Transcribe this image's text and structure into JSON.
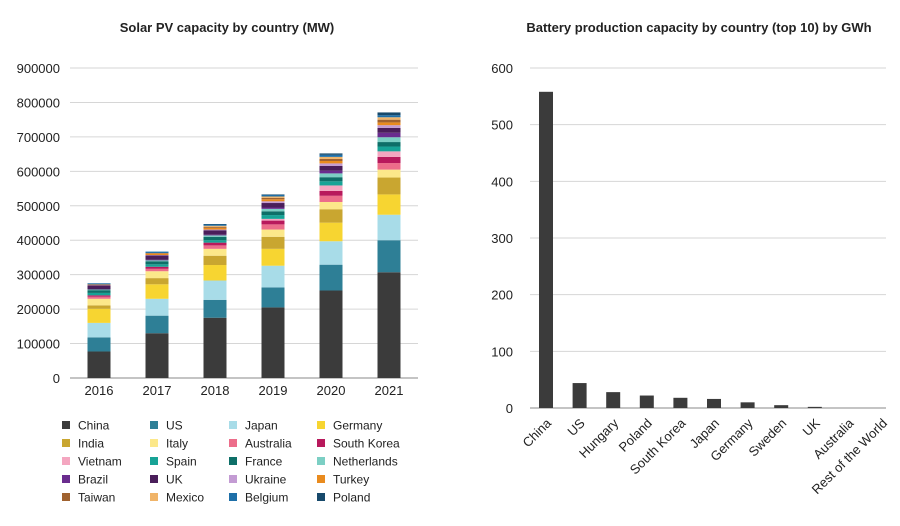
{
  "chart_data": [
    {
      "type": "bar",
      "stacked": true,
      "title": "Solar PV capacity by country (MW)",
      "xlabel": "",
      "ylabel": "",
      "ylim": [
        0,
        900000
      ],
      "yticks": [
        "0",
        "100000",
        "200000",
        "300000",
        "400000",
        "500000",
        "600000",
        "700000",
        "800000",
        "900000"
      ],
      "categories": [
        "2016",
        "2017",
        "2018",
        "2019",
        "2020",
        "2021"
      ],
      "grid": true,
      "legend": "bottom",
      "series": [
        {
          "name": "China",
          "color": "#3b3b3b",
          "values": [
            77000,
            130000,
            175000,
            205000,
            254000,
            307000
          ]
        },
        {
          "name": "US",
          "color": "#2e7f96",
          "values": [
            41000,
            51000,
            52000,
            58000,
            75000,
            93000
          ]
        },
        {
          "name": "Japan",
          "color": "#a8dce8",
          "values": [
            42000,
            49000,
            56000,
            63000,
            68000,
            74000
          ]
        },
        {
          "name": "Germany",
          "color": "#f7d531",
          "values": [
            41000,
            42000,
            45000,
            49000,
            54000,
            59000
          ]
        },
        {
          "name": "India",
          "color": "#c9a630",
          "values": [
            10000,
            18000,
            27000,
            35000,
            39000,
            49000
          ]
        },
        {
          "name": "Italy",
          "color": "#fce88a",
          "values": [
            19000,
            20000,
            20000,
            21000,
            21000,
            23000
          ]
        },
        {
          "name": "Australia",
          "color": "#ec6d8a",
          "values": [
            6000,
            7000,
            10000,
            15000,
            18000,
            19000
          ]
        },
        {
          "name": "South Korea",
          "color": "#b8195c",
          "values": [
            4000,
            6000,
            8000,
            11000,
            14000,
            18000
          ]
        },
        {
          "name": "Vietnam",
          "color": "#f4a6c0",
          "values": [
            0,
            0,
            0,
            5000,
            16000,
            16000
          ]
        },
        {
          "name": "Spain",
          "color": "#17a396",
          "values": [
            7000,
            7000,
            7000,
            11000,
            12000,
            14000
          ]
        },
        {
          "name": "France",
          "color": "#0e6f68",
          "values": [
            8000,
            9000,
            10000,
            11000,
            12000,
            13000
          ]
        },
        {
          "name": "Netherlands",
          "color": "#7ccfc4",
          "values": [
            2000,
            3000,
            4000,
            7000,
            11000,
            14000
          ]
        },
        {
          "name": "Brazil",
          "color": "#6a2c8e",
          "values": [
            0,
            1000,
            2000,
            4000,
            8000,
            13000
          ]
        },
        {
          "name": "UK",
          "color": "#4a1e5a",
          "values": [
            12000,
            13000,
            13000,
            13000,
            14000,
            14000
          ]
        },
        {
          "name": "Ukraine",
          "color": "#c39bd3",
          "values": [
            1000,
            1000,
            2000,
            5000,
            7000,
            8000
          ]
        },
        {
          "name": "Turkey",
          "color": "#e98b1e",
          "values": [
            1000,
            3000,
            5000,
            6000,
            7000,
            8000
          ]
        },
        {
          "name": "Taiwan",
          "color": "#a0622f",
          "values": [
            1000,
            2000,
            3000,
            4000,
            6000,
            8000
          ]
        },
        {
          "name": "Mexico",
          "color": "#f0b469",
          "values": [
            0,
            1000,
            3000,
            4000,
            6000,
            7000
          ]
        },
        {
          "name": "Belgium",
          "color": "#1e6fa8",
          "values": [
            3000,
            4000,
            4000,
            5000,
            6000,
            6000
          ]
        },
        {
          "name": "Poland",
          "color": "#17496b",
          "values": [
            0,
            0,
            1000,
            1000,
            4000,
            8000
          ]
        }
      ]
    },
    {
      "type": "bar",
      "title": "Battery production capacity by country (top 10) by GWh",
      "xlabel": "",
      "ylabel": "",
      "ylim": [
        0,
        600
      ],
      "yticks": [
        "0",
        "100",
        "200",
        "300",
        "400",
        "500",
        "600"
      ],
      "categories": [
        "China",
        "US",
        "Hungary",
        "Poland",
        "South Korea",
        "Japan",
        "Germany",
        "Sweden",
        "UK",
        "Australia",
        "Rest of the World"
      ],
      "values": [
        558,
        44,
        28,
        22,
        18,
        16,
        10,
        5,
        2,
        0,
        0
      ],
      "color": "#3b3b3b",
      "grid": true
    }
  ]
}
